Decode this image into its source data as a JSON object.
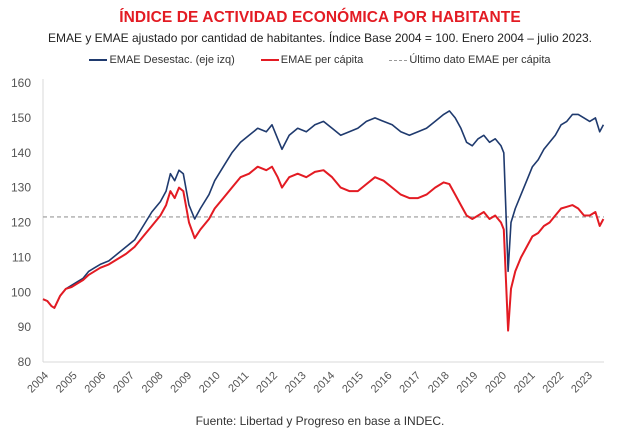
{
  "chart_data": {
    "type": "line",
    "title": "ÍNDICE DE ACTIVIDAD ECONÓMICA POR HABITANTE",
    "subtitle": "EMAE y EMAE ajustado por cantidad de habitantes. Índice Base 2004 = 100. Enero 2004 – julio 2023.",
    "source": "Fuente: Libertad y Progreso en base a INDEC.",
    "xlabel": "",
    "ylabel": "",
    "ylim": [
      80,
      160
    ],
    "xlim": [
      2004,
      2023.6
    ],
    "yticks": [
      "80",
      "90",
      "100",
      "110",
      "120",
      "130",
      "140",
      "150",
      "160"
    ],
    "xticks": [
      "2004",
      "2005",
      "2006",
      "2007",
      "2008",
      "2009",
      "2010",
      "2011",
      "2012",
      "2013",
      "2014",
      "2015",
      "2016",
      "2017",
      "2018",
      "2019",
      "2020",
      "2021",
      "2022",
      "2023"
    ],
    "grid": false,
    "legend_position": "top-center",
    "reference_line": {
      "name": "Último dato EMAE per cápita",
      "value": 121.6,
      "color": "#999999"
    },
    "series": [
      {
        "name": "EMAE Desestac. (eje izq)",
        "color": "#1f3a6e",
        "x": [
          2004.0,
          2004.15,
          2004.3,
          2004.4,
          2004.6,
          2004.8,
          2005.0,
          2005.2,
          2005.4,
          2005.6,
          2005.8,
          2006.0,
          2006.3,
          2006.6,
          2006.9,
          2007.2,
          2007.5,
          2007.8,
          2008.1,
          2008.3,
          2008.45,
          2008.6,
          2008.75,
          2008.9,
          2009.1,
          2009.3,
          2009.5,
          2009.8,
          2010.0,
          2010.3,
          2010.6,
          2010.9,
          2011.2,
          2011.5,
          2011.8,
          2012.0,
          2012.2,
          2012.35,
          2012.6,
          2012.9,
          2013.2,
          2013.5,
          2013.8,
          2014.1,
          2014.4,
          2014.7,
          2015.0,
          2015.3,
          2015.6,
          2015.9,
          2016.2,
          2016.5,
          2016.8,
          2017.1,
          2017.4,
          2017.7,
          2018.0,
          2018.2,
          2018.4,
          2018.6,
          2018.8,
          2019.0,
          2019.2,
          2019.4,
          2019.6,
          2019.8,
          2020.0,
          2020.1,
          2020.25,
          2020.35,
          2020.5,
          2020.7,
          2020.9,
          2021.1,
          2021.3,
          2021.5,
          2021.7,
          2021.9,
          2022.1,
          2022.3,
          2022.5,
          2022.7,
          2022.9,
          2023.1,
          2023.3,
          2023.45,
          2023.58
        ],
        "values": [
          98,
          97.5,
          96,
          95.5,
          99,
          101,
          102,
          103,
          104,
          106,
          107,
          108,
          109,
          111,
          113,
          115,
          119,
          123,
          126,
          129,
          134,
          132,
          135,
          134,
          125,
          121,
          124,
          128,
          132,
          136,
          140,
          143,
          145,
          147,
          146,
          148,
          144,
          141,
          145,
          147,
          146,
          148,
          149,
          147,
          145,
          146,
          147,
          149,
          150,
          149,
          148,
          146,
          145,
          146,
          147,
          149,
          151,
          152,
          150,
          147,
          143,
          142,
          144,
          145,
          143,
          144,
          142,
          140,
          106,
          120,
          124,
          128,
          132,
          136,
          138,
          141,
          143,
          145,
          148,
          149,
          151,
          151,
          150,
          149,
          150,
          146,
          148
        ]
      },
      {
        "name": "EMAE per cápita",
        "color": "#e31b23",
        "x": [
          2004.0,
          2004.15,
          2004.3,
          2004.4,
          2004.6,
          2004.8,
          2005.0,
          2005.2,
          2005.4,
          2005.6,
          2005.8,
          2006.0,
          2006.3,
          2006.6,
          2006.9,
          2007.2,
          2007.5,
          2007.8,
          2008.1,
          2008.3,
          2008.45,
          2008.6,
          2008.75,
          2008.9,
          2009.1,
          2009.3,
          2009.5,
          2009.8,
          2010.0,
          2010.3,
          2010.6,
          2010.9,
          2011.2,
          2011.5,
          2011.8,
          2012.0,
          2012.2,
          2012.35,
          2012.6,
          2012.9,
          2013.2,
          2013.5,
          2013.8,
          2014.1,
          2014.4,
          2014.7,
          2015.0,
          2015.3,
          2015.6,
          2015.9,
          2016.2,
          2016.5,
          2016.8,
          2017.1,
          2017.4,
          2017.7,
          2018.0,
          2018.2,
          2018.4,
          2018.6,
          2018.8,
          2019.0,
          2019.2,
          2019.4,
          2019.6,
          2019.8,
          2020.0,
          2020.1,
          2020.25,
          2020.35,
          2020.5,
          2020.7,
          2020.9,
          2021.1,
          2021.3,
          2021.5,
          2021.7,
          2021.9,
          2022.1,
          2022.3,
          2022.5,
          2022.7,
          2022.9,
          2023.1,
          2023.3,
          2023.45,
          2023.58
        ],
        "values": [
          98,
          97.5,
          96,
          95.5,
          99,
          101,
          101.5,
          102.5,
          103.5,
          105,
          106,
          107,
          108,
          109.5,
          111,
          113,
          116,
          119,
          122,
          125,
          129,
          127,
          130,
          129,
          120,
          115.5,
          118,
          121,
          124,
          127,
          130,
          133,
          134,
          136,
          135,
          136,
          133,
          130,
          133,
          134,
          133,
          134.5,
          135,
          133,
          130,
          129,
          129,
          131,
          133,
          132,
          130,
          128,
          127,
          127,
          128,
          130,
          131.5,
          131,
          128,
          125,
          122,
          121,
          122,
          123,
          121,
          122,
          120,
          118,
          89,
          101,
          106,
          110,
          113,
          116,
          117,
          119,
          120,
          122,
          124,
          124.5,
          125,
          124,
          122,
          122,
          123,
          119,
          121
        ]
      }
    ]
  }
}
